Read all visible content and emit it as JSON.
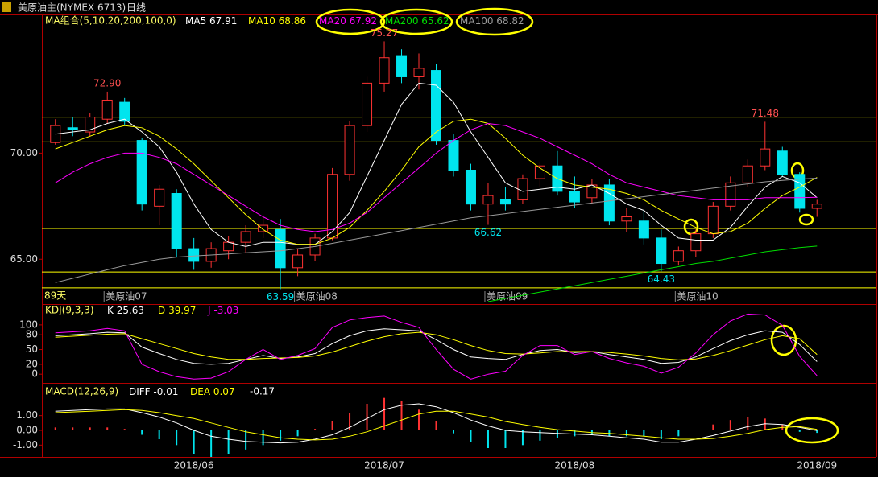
{
  "chart_data": {
    "type": "candlestick",
    "title": "美原油主(NYMEX 6713)",
    "period": "日线",
    "ma_label": "MA组合(5,10,20,200,100,0)",
    "days_label": "89天",
    "categories": [
      null,
      null,
      null,
      null,
      null,
      null,
      null,
      null,
      "2018/06",
      null,
      null,
      null,
      null,
      null,
      null,
      null,
      null,
      null,
      null,
      "2018/07",
      null,
      null,
      null,
      null,
      null,
      null,
      null,
      null,
      null,
      null,
      "2018/08",
      null,
      null,
      null,
      null,
      null,
      null,
      null,
      null,
      null,
      null,
      null,
      null,
      null,
      "2018/09"
    ],
    "contracts": [
      null,
      null,
      null,
      "美原油07",
      null,
      null,
      null,
      null,
      null,
      null,
      null,
      null,
      null,
      null,
      "美原油08",
      null,
      null,
      null,
      null,
      null,
      null,
      null,
      null,
      null,
      null,
      "美原油09",
      null,
      null,
      null,
      null,
      null,
      null,
      null,
      null,
      null,
      null,
      "美原油10",
      null,
      null,
      null,
      null,
      null,
      null,
      null,
      null
    ],
    "ohlc": [
      [
        70.5,
        71.6,
        70.4,
        71.3
      ],
      [
        71.2,
        71.7,
        70.8,
        71.1
      ],
      [
        71.0,
        71.9,
        70.8,
        71.7
      ],
      [
        71.6,
        72.9,
        71.4,
        72.5
      ],
      [
        72.4,
        72.6,
        71.3,
        71.5
      ],
      [
        70.6,
        70.7,
        67.3,
        67.6
      ],
      [
        67.5,
        68.5,
        66.6,
        68.3
      ],
      [
        68.1,
        68.3,
        65.1,
        65.5
      ],
      [
        65.5,
        66.0,
        64.5,
        64.9
      ],
      [
        64.9,
        65.8,
        64.6,
        65.5
      ],
      [
        65.4,
        66.1,
        65.0,
        65.8
      ],
      [
        65.8,
        66.6,
        65.3,
        66.3
      ],
      [
        66.3,
        67.0,
        66.0,
        66.6
      ],
      [
        66.4,
        66.9,
        63.59,
        64.6
      ],
      [
        64.6,
        65.5,
        64.2,
        65.2
      ],
      [
        65.2,
        66.2,
        64.9,
        66.0
      ],
      [
        66.0,
        69.3,
        65.9,
        69.0
      ],
      [
        69.0,
        71.5,
        68.7,
        71.3
      ],
      [
        71.3,
        73.6,
        71.0,
        73.3
      ],
      [
        73.3,
        75.27,
        72.9,
        74.5
      ],
      [
        74.6,
        74.9,
        73.3,
        73.6
      ],
      [
        73.6,
        74.7,
        73.0,
        74.0
      ],
      [
        73.9,
        74.2,
        70.4,
        70.6
      ],
      [
        70.6,
        70.9,
        68.9,
        69.2
      ],
      [
        69.2,
        69.5,
        67.3,
        67.6
      ],
      [
        67.6,
        68.6,
        66.62,
        68.0
      ],
      [
        67.8,
        68.4,
        67.3,
        67.6
      ],
      [
        67.8,
        69.0,
        67.6,
        68.8
      ],
      [
        68.8,
        69.6,
        68.4,
        69.4
      ],
      [
        69.4,
        70.1,
        68.0,
        68.2
      ],
      [
        68.2,
        68.9,
        67.4,
        67.7
      ],
      [
        67.9,
        68.8,
        67.6,
        68.5
      ],
      [
        68.5,
        68.8,
        66.6,
        66.8
      ],
      [
        66.8,
        67.4,
        66.3,
        67.0
      ],
      [
        66.8,
        67.3,
        65.7,
        66.0
      ],
      [
        66.0,
        66.4,
        64.43,
        64.8
      ],
      [
        64.9,
        65.6,
        64.7,
        65.4
      ],
      [
        65.4,
        66.4,
        65.1,
        66.2
      ],
      [
        66.2,
        67.7,
        66.0,
        67.5
      ],
      [
        67.5,
        68.9,
        67.3,
        68.6
      ],
      [
        68.6,
        69.7,
        68.4,
        69.4
      ],
      [
        69.4,
        71.48,
        69.2,
        70.2
      ],
      [
        70.1,
        70.3,
        68.9,
        69.0
      ],
      [
        69.0,
        69.1,
        67.2,
        67.4
      ],
      [
        67.4,
        67.8,
        67.0,
        67.6
      ]
    ],
    "up_color": "#ff3232",
    "down_color": "#00e5ee",
    "ylim": [
      63.0,
      75.4
    ],
    "yticks": [
      {
        "value": 65,
        "label": "65.00"
      },
      {
        "value": 70,
        "label": "70.00"
      }
    ],
    "levels": [
      71.7,
      70.53,
      66.45,
      64.4,
      63.65
    ],
    "level_color": "#ffff00",
    "annotations": [
      {
        "value": 72.9,
        "label": "72.90",
        "color": "#ff5050"
      },
      {
        "value": 75.27,
        "label": "75.27",
        "color": "#ff5050"
      },
      {
        "value": 63.59,
        "label": "63.59",
        "color": "#00e5ee"
      },
      {
        "value": 66.62,
        "label": "66.62",
        "color": "#00e5ee"
      },
      {
        "value": 64.43,
        "label": "64.43",
        "color": "#00e5ee"
      },
      {
        "value": 71.48,
        "label": "71.48",
        "color": "#ff5050"
      }
    ],
    "series": [
      {
        "name": "MA5",
        "value": 67.91,
        "color": "#ffffff",
        "values": [
          70.9,
          71.0,
          71.1,
          71.4,
          71.6,
          71.0,
          70.3,
          69.1,
          67.6,
          66.4,
          65.8,
          65.6,
          65.8,
          65.8,
          65.7,
          65.7,
          66.3,
          67.2,
          68.9,
          70.6,
          72.3,
          73.3,
          73.2,
          72.4,
          71.0,
          69.8,
          68.6,
          68.2,
          68.3,
          68.4,
          68.3,
          68.5,
          68.1,
          67.6,
          67.3,
          66.6,
          66.0,
          65.9,
          65.9,
          66.5,
          67.5,
          68.4,
          68.9,
          68.6,
          67.9
        ]
      },
      {
        "name": "MA10",
        "value": 68.86,
        "color": "#ffff00",
        "values": [
          70.2,
          70.5,
          70.8,
          71.1,
          71.3,
          71.2,
          70.8,
          70.2,
          69.5,
          68.7,
          67.9,
          67.1,
          66.4,
          65.9,
          65.7,
          65.7,
          66.0,
          66.5,
          67.3,
          68.2,
          69.2,
          70.3,
          71.0,
          71.5,
          71.6,
          71.4,
          70.7,
          69.9,
          69.3,
          68.8,
          68.5,
          68.4,
          68.3,
          68.1,
          67.8,
          67.3,
          66.9,
          66.5,
          66.2,
          66.3,
          66.7,
          67.4,
          68.0,
          68.4,
          68.86
        ]
      },
      {
        "name": "MA20",
        "value": 67.92,
        "color": "#ff00ff",
        "values": [
          68.6,
          69.1,
          69.5,
          69.8,
          70.0,
          70.0,
          69.8,
          69.5,
          69.0,
          68.5,
          68.0,
          67.5,
          67.0,
          66.6,
          66.4,
          66.3,
          66.4,
          66.7,
          67.2,
          67.9,
          68.6,
          69.3,
          70.0,
          70.6,
          71.1,
          71.4,
          71.3,
          71.0,
          70.7,
          70.3,
          69.9,
          69.5,
          69.0,
          68.6,
          68.4,
          68.2,
          68.0,
          67.9,
          67.8,
          67.8,
          67.8,
          67.9,
          67.9,
          67.9,
          67.92
        ]
      },
      {
        "name": "MA200",
        "value": 65.62,
        "color": "#00dd00",
        "values": [
          null,
          null,
          null,
          null,
          null,
          null,
          null,
          null,
          null,
          null,
          null,
          null,
          null,
          null,
          null,
          null,
          null,
          null,
          null,
          null,
          null,
          null,
          null,
          null,
          null,
          63.0,
          63.15,
          63.3,
          63.45,
          63.6,
          63.75,
          63.9,
          64.05,
          64.2,
          64.35,
          64.5,
          64.65,
          64.8,
          64.9,
          65.05,
          65.2,
          65.35,
          65.45,
          65.55,
          65.62
        ]
      },
      {
        "name": "MA100",
        "value": 68.82,
        "color": "#9a9a9a",
        "values": [
          63.9,
          64.1,
          64.3,
          64.5,
          64.7,
          64.85,
          65.0,
          65.1,
          65.15,
          65.2,
          65.25,
          65.3,
          65.35,
          65.4,
          65.5,
          65.6,
          65.75,
          65.9,
          66.05,
          66.2,
          66.35,
          66.5,
          66.65,
          66.8,
          66.95,
          67.05,
          67.15,
          67.25,
          67.35,
          67.45,
          67.55,
          67.65,
          67.75,
          67.85,
          67.95,
          68.05,
          68.15,
          68.25,
          68.35,
          68.45,
          68.55,
          68.65,
          68.72,
          68.78,
          68.82
        ]
      }
    ],
    "kdj": {
      "title": "KDJ(9,3,3)",
      "ylim": [
        -16,
        139
      ],
      "yticks": [
        0,
        20,
        50,
        80,
        100
      ],
      "series": [
        {
          "name": "K",
          "value": 25.63,
          "color": "#ffffff",
          "values": [
            78,
            80,
            82,
            85,
            84,
            55,
            42,
            30,
            22,
            20,
            22,
            30,
            38,
            32,
            35,
            42,
            62,
            78,
            88,
            92,
            90,
            88,
            70,
            50,
            35,
            32,
            30,
            40,
            48,
            50,
            44,
            46,
            40,
            35,
            30,
            22,
            24,
            35,
            52,
            68,
            80,
            88,
            85,
            60,
            25.63
          ]
        },
        {
          "name": "D",
          "value": 39.97,
          "color": "#ffff00",
          "values": [
            75,
            77,
            79,
            81,
            82,
            72,
            62,
            52,
            42,
            35,
            30,
            30,
            32,
            33,
            34,
            37,
            45,
            56,
            67,
            76,
            82,
            85,
            80,
            70,
            58,
            48,
            42,
            41,
            43,
            46,
            46,
            46,
            44,
            41,
            37,
            32,
            29,
            31,
            38,
            48,
            59,
            70,
            78,
            72,
            39.97
          ]
        },
        {
          "name": "J",
          "value": -3.03,
          "color": "#ff00ff",
          "values": [
            84,
            86,
            88,
            93,
            88,
            20,
            5,
            -5,
            -10,
            -8,
            5,
            30,
            50,
            30,
            38,
            52,
            95,
            110,
            115,
            118,
            105,
            95,
            50,
            10,
            -10,
            0,
            6,
            38,
            58,
            58,
            40,
            46,
            32,
            23,
            16,
            2,
            14,
            43,
            80,
            108,
            122,
            120,
            99,
            36,
            -3.03
          ]
        }
      ]
    },
    "macd": {
      "title": "MACD(12,26,9)",
      "ylim": [
        -1.8,
        3.0
      ],
      "yticks": [
        {
          "value": -1,
          "label": "-1.00"
        },
        {
          "value": 0,
          "label": "0.00"
        },
        {
          "value": 1,
          "label": "1.00"
        }
      ],
      "series": [
        {
          "name": "DIFF",
          "value": -0.01,
          "color": "#ffffff",
          "values": [
            1.3,
            1.35,
            1.4,
            1.45,
            1.45,
            1.2,
            0.9,
            0.5,
            0.0,
            -0.4,
            -0.6,
            -0.75,
            -0.8,
            -0.85,
            -0.8,
            -0.6,
            -0.3,
            0.2,
            0.8,
            1.4,
            1.7,
            1.8,
            1.6,
            1.2,
            0.7,
            0.3,
            0.0,
            -0.1,
            -0.15,
            -0.2,
            -0.25,
            -0.3,
            -0.4,
            -0.5,
            -0.6,
            -0.8,
            -0.8,
            -0.6,
            -0.35,
            -0.05,
            0.25,
            0.45,
            0.4,
            0.2,
            -0.01
          ]
        },
        {
          "name": "DEA",
          "value": 0.07,
          "color": "#ffff00",
          "values": [
            1.2,
            1.25,
            1.3,
            1.35,
            1.4,
            1.35,
            1.2,
            1.0,
            0.8,
            0.5,
            0.2,
            -0.1,
            -0.3,
            -0.5,
            -0.6,
            -0.65,
            -0.6,
            -0.4,
            -0.1,
            0.3,
            0.7,
            1.1,
            1.3,
            1.3,
            1.1,
            0.9,
            0.6,
            0.4,
            0.2,
            0.05,
            -0.05,
            -0.15,
            -0.2,
            -0.3,
            -0.4,
            -0.5,
            -0.6,
            -0.6,
            -0.55,
            -0.4,
            -0.2,
            0.05,
            0.2,
            0.25,
            0.07
          ]
        }
      ],
      "histogram": {
        "value": -0.17,
        "up_color": "#ff3232",
        "down_color": "#00e5ee",
        "values": [
          0.2,
          0.2,
          0.2,
          0.2,
          0.1,
          -0.3,
          -0.6,
          -1.0,
          -1.6,
          -1.8,
          -1.6,
          -1.3,
          -1.0,
          -0.7,
          -0.4,
          0.1,
          0.6,
          1.2,
          1.8,
          2.2,
          2.0,
          1.4,
          0.6,
          -0.2,
          -0.8,
          -1.2,
          -1.2,
          -1.0,
          -0.7,
          -0.5,
          -0.4,
          -0.3,
          -0.4,
          -0.4,
          -0.4,
          -0.6,
          -0.4,
          0.0,
          0.4,
          0.7,
          0.9,
          0.8,
          0.4,
          -0.1,
          -0.17
        ]
      }
    }
  }
}
